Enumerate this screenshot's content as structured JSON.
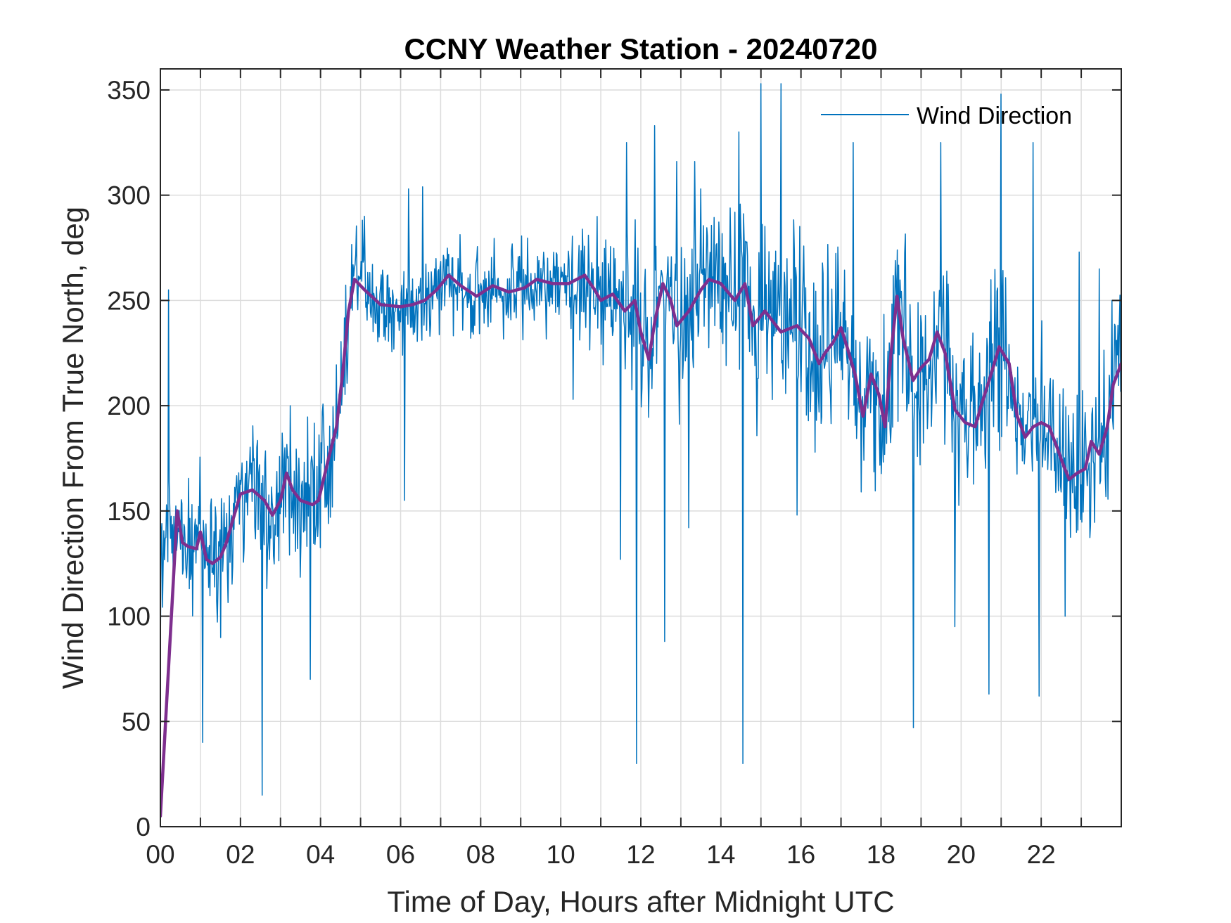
{
  "chart_data": {
    "type": "line",
    "title": "CCNY Weather Station - 20240720",
    "xlabel": "Time of Day, Hours after Midnight UTC",
    "ylabel": "Wind Direction From True North, deg",
    "xlim": [
      0,
      24
    ],
    "ylim": [
      0,
      360
    ],
    "x_ticks": [
      0,
      2,
      4,
      6,
      8,
      10,
      12,
      14,
      16,
      18,
      20,
      22
    ],
    "x_tick_labels": [
      "00",
      "02",
      "04",
      "06",
      "08",
      "10",
      "12",
      "14",
      "16",
      "18",
      "20",
      "22"
    ],
    "x_minor_grid_step": 1,
    "y_ticks": [
      0,
      50,
      100,
      150,
      200,
      250,
      300,
      350
    ],
    "y_tick_labels": [
      "0",
      "50",
      "100",
      "150",
      "200",
      "250",
      "300",
      "350"
    ],
    "grid": true,
    "legend": {
      "position": "top-right",
      "entries": [
        "Wind Direction"
      ]
    },
    "series": [
      {
        "name": "Wind Direction",
        "color": "#0072BD",
        "line_width": 1.5,
        "sample_interval_hours": 0.0167,
        "noise_amplitude_by_hour": [
          [
            0,
            35
          ],
          [
            2,
            35
          ],
          [
            4,
            45
          ],
          [
            5,
            25
          ],
          [
            10,
            25
          ],
          [
            12,
            40
          ],
          [
            16,
            45
          ],
          [
            18,
            50
          ],
          [
            20,
            50
          ],
          [
            22,
            45
          ],
          [
            24,
            40
          ]
        ],
        "spikes": [
          [
            0.2,
            255
          ],
          [
            1.05,
            40
          ],
          [
            2.55,
            15
          ],
          [
            3.75,
            70
          ],
          [
            5.1,
            290
          ],
          [
            6.2,
            303
          ],
          [
            6.55,
            304
          ],
          [
            6.1,
            155
          ],
          [
            10.3,
            203
          ],
          [
            11.5,
            127
          ],
          [
            11.65,
            325
          ],
          [
            11.9,
            30
          ],
          [
            12.35,
            333
          ],
          [
            12.6,
            88
          ],
          [
            12.9,
            316
          ],
          [
            13.2,
            142
          ],
          [
            13.35,
            316
          ],
          [
            14.45,
            330
          ],
          [
            14.55,
            30
          ],
          [
            15.0,
            353
          ],
          [
            15.5,
            353
          ],
          [
            15.9,
            148
          ],
          [
            17.3,
            325
          ],
          [
            18.8,
            47
          ],
          [
            19.5,
            325
          ],
          [
            19.85,
            95
          ],
          [
            20.7,
            63
          ],
          [
            21.0,
            348
          ],
          [
            21.8,
            325
          ],
          [
            21.95,
            62
          ],
          [
            22.6,
            100
          ],
          [
            22.95,
            273
          ],
          [
            23.45,
            265
          ]
        ]
      },
      {
        "name": "",
        "color": "#7E2F8E",
        "line_width": 4.5,
        "x": [
          0.0,
          0.42,
          0.55,
          0.7,
          0.9,
          1.0,
          1.15,
          1.3,
          1.5,
          1.65,
          1.8,
          2.0,
          2.3,
          2.6,
          2.8,
          3.0,
          3.15,
          3.3,
          3.5,
          3.8,
          3.95,
          4.2,
          4.4,
          4.55,
          4.7,
          4.85,
          5.1,
          5.5,
          6.0,
          6.3,
          6.6,
          6.9,
          7.2,
          7.5,
          7.9,
          8.3,
          8.7,
          9.1,
          9.4,
          9.8,
          10.2,
          10.6,
          10.85,
          11.0,
          11.3,
          11.6,
          11.85,
          12.0,
          12.2,
          12.35,
          12.55,
          12.75,
          12.9,
          13.2,
          13.5,
          13.7,
          14.0,
          14.35,
          14.6,
          14.8,
          15.1,
          15.5,
          15.9,
          16.2,
          16.45,
          16.6,
          16.8,
          17.0,
          17.15,
          17.35,
          17.55,
          17.75,
          17.95,
          18.1,
          18.25,
          18.4,
          18.55,
          18.8,
          19.0,
          19.2,
          19.4,
          19.6,
          19.85,
          20.1,
          20.35,
          20.5,
          20.75,
          20.95,
          21.2,
          21.4,
          21.6,
          21.8,
          22.0,
          22.2,
          22.4,
          22.55,
          22.7,
          22.9,
          23.1,
          23.25,
          23.45,
          23.65,
          23.8,
          24.0
        ],
        "values": [
          5,
          150,
          135,
          133,
          132,
          140,
          127,
          125,
          128,
          135,
          145,
          158,
          160,
          155,
          148,
          155,
          168,
          160,
          155,
          153,
          155,
          175,
          190,
          215,
          245,
          260,
          255,
          248,
          247,
          248,
          250,
          255,
          262,
          257,
          252,
          257,
          254,
          256,
          260,
          258,
          258,
          262,
          255,
          250,
          253,
          245,
          250,
          235,
          222,
          240,
          258,
          250,
          238,
          245,
          255,
          260,
          258,
          250,
          258,
          238,
          245,
          235,
          238,
          232,
          220,
          225,
          230,
          237,
          228,
          215,
          195,
          215,
          205,
          190,
          225,
          252,
          232,
          212,
          218,
          222,
          235,
          225,
          198,
          192,
          190,
          200,
          215,
          228,
          220,
          195,
          185,
          190,
          192,
          190,
          180,
          172,
          165,
          168,
          170,
          183,
          177,
          190,
          210,
          220
        ]
      }
    ]
  }
}
